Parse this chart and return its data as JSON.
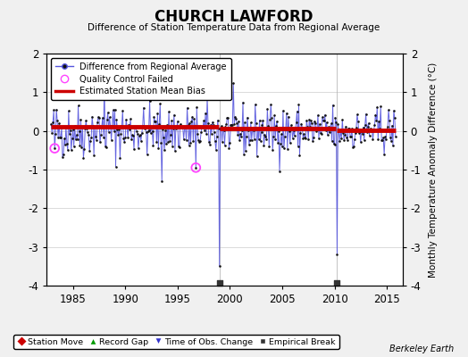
{
  "title": "CHURCH LAWFORD",
  "subtitle": "Difference of Station Temperature Data from Regional Average",
  "ylabel": "Monthly Temperature Anomaly Difference (°C)",
  "xlabel_years": [
    1985,
    1990,
    1995,
    2000,
    2005,
    2010,
    2015
  ],
  "ylim": [
    -4,
    2
  ],
  "yticks": [
    -4,
    -3,
    -2,
    -1,
    0,
    1,
    2
  ],
  "xlim": [
    1982.5,
    2016.5
  ],
  "bg_color": "#f0f0f0",
  "plot_bg_color": "#ffffff",
  "line_color": "#5555dd",
  "dot_color": "#111111",
  "bias_color": "#cc0000",
  "qc_color": "#ff44ff",
  "station_move_color": "#cc0000",
  "record_gap_color": "#009900",
  "time_obs_color": "#3333cc",
  "empirical_break_color": "#333333",
  "credit": "Berkeley Earth",
  "seed": 42,
  "n_months": 396,
  "start_year": 1982.917,
  "bias_seg1_val": 0.1,
  "bias_seg2_val": 0.05,
  "bias_seg3_val": 0.02,
  "break_year_1": 1999.0,
  "break_year_2": 2010.25,
  "spike_1_year": 1999.0,
  "spike_1_val": -3.5,
  "spike_2_year": 2010.25,
  "spike_2_val": -3.2,
  "qc_year_1": 1983.25,
  "qc_val_1": -0.45,
  "qc_year_2": 1996.75,
  "qc_val_2": -0.95,
  "early_spike_year": 1988.0,
  "early_spike_val": 1.35,
  "mid_spike_year": 1993.5,
  "mid_spike_val": -1.3,
  "late_spike_year": 2005.5,
  "late_spike_val": 1.15
}
